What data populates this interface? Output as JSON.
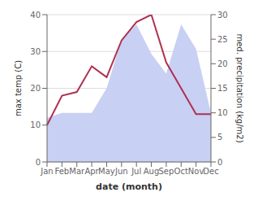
{
  "chart_data": {
    "type": "line",
    "categories": [
      "Jan",
      "Feb",
      "Mar",
      "Apr",
      "May",
      "Jun",
      "Jul",
      "Aug",
      "Sep",
      "Oct",
      "Nov",
      "Dec"
    ],
    "series": [
      {
        "type": "area",
        "axis": "y2",
        "color": "#c8d0f4",
        "values": [
          9,
          10,
          10,
          10,
          15,
          25,
          28,
          22,
          18,
          28,
          23,
          10
        ]
      },
      {
        "type": "line",
        "color": "#b03050",
        "values": [
          10,
          18,
          19,
          26,
          23,
          33,
          38,
          40,
          27,
          20,
          13,
          13
        ]
      }
    ],
    "xlabel": "date (month)",
    "ylabel": "max temp (C)",
    "y2label": "med. precipitation (kg/m2)",
    "ylim": [
      0,
      40
    ],
    "yticks": [
      0,
      10,
      20,
      30,
      40
    ],
    "y2lim": [
      0,
      30
    ],
    "y2ticks": [
      0,
      5,
      10,
      15,
      20,
      25,
      30
    ],
    "grid": true
  }
}
